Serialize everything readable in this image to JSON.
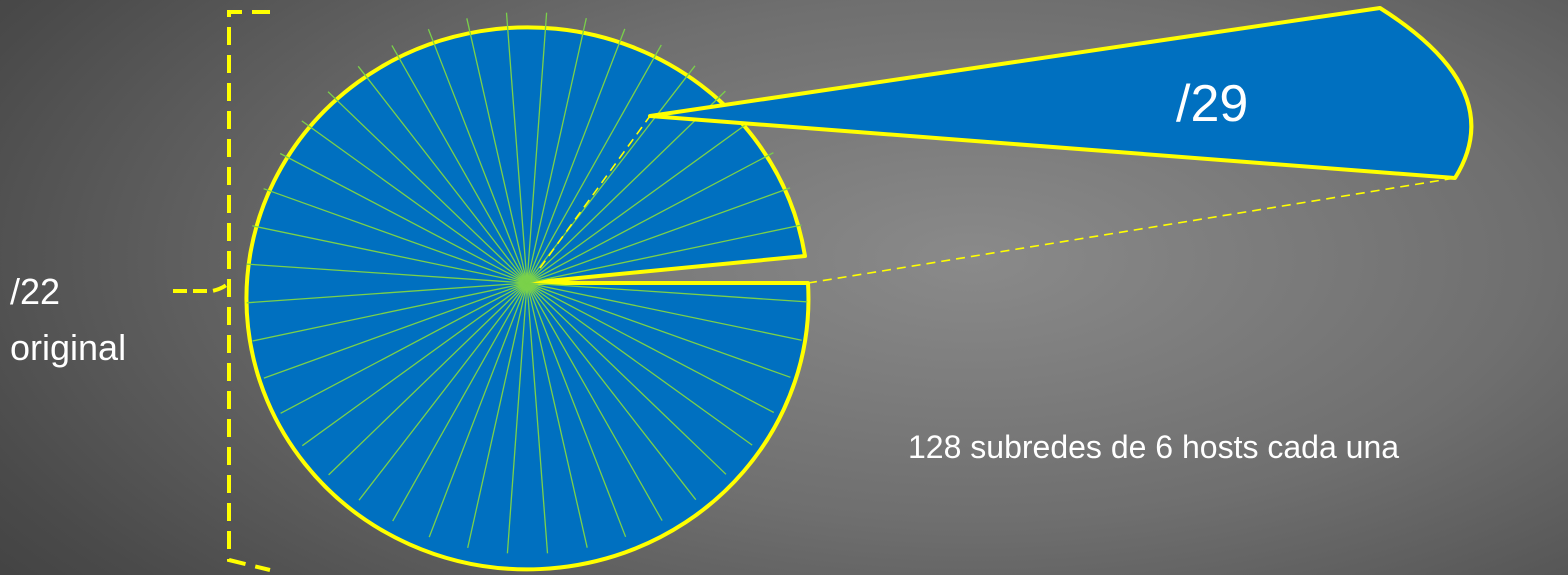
{
  "diagram": {
    "original_prefix": "/22",
    "original_word": "original",
    "slice_prefix": "/29",
    "caption": "128 subredes de 6 hosts cada una",
    "colors": {
      "fill": "#0070c0",
      "outline": "#ffff00",
      "divider": "#7ad14a",
      "bracket": "#ffff00",
      "dashed_guide": "#ffff00",
      "text": "#ffffff"
    }
  }
}
